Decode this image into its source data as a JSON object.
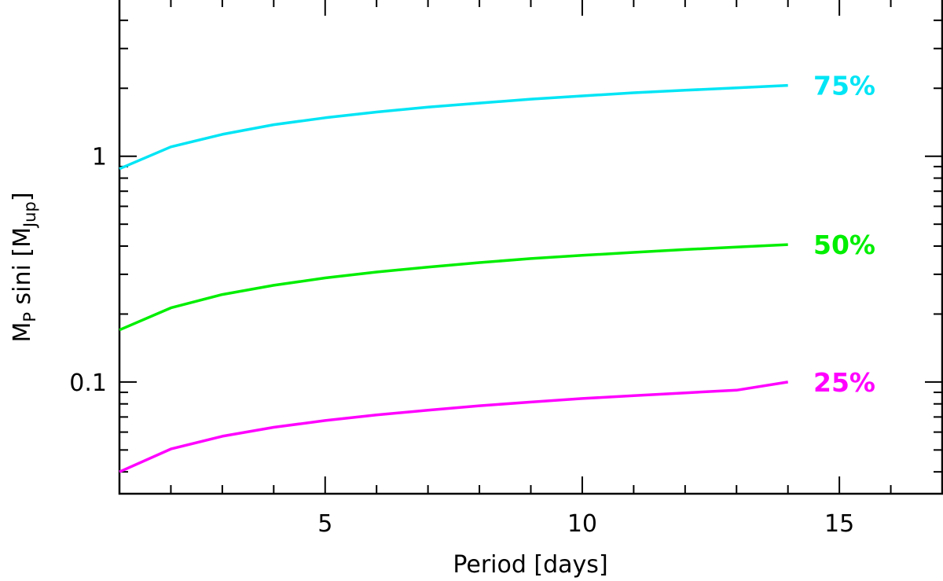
{
  "chart_data": {
    "type": "line",
    "xlabel": "Period [days]",
    "ylabel": {
      "base": "M",
      "base_sub": "P",
      "mid": " sini [M",
      "unit_sub": "Jup",
      "end": "]"
    },
    "xlim": [
      1,
      17
    ],
    "ylim": [
      0.032,
      5
    ],
    "yscale": "log",
    "x_ticks": [
      5,
      10,
      15
    ],
    "x_tick_labels": [
      "5",
      "10",
      "15"
    ],
    "y_ticks": [
      0.1,
      1
    ],
    "y_tick_labels": [
      "0.1",
      "1"
    ],
    "grid": false,
    "series": [
      {
        "name": "75%",
        "color": "#00e5f5",
        "x": [
          1,
          2,
          3,
          4,
          5,
          6,
          7,
          8,
          9,
          10,
          11,
          12,
          13,
          14
        ],
        "y": [
          0.88,
          1.1,
          1.25,
          1.38,
          1.48,
          1.57,
          1.65,
          1.72,
          1.79,
          1.85,
          1.91,
          1.96,
          2.01,
          2.06
        ]
      },
      {
        "name": "50%",
        "color": "#00ee00",
        "x": [
          1,
          2,
          3,
          4,
          5,
          6,
          7,
          8,
          9,
          10,
          11,
          12,
          13,
          14
        ],
        "y": [
          0.17,
          0.213,
          0.244,
          0.268,
          0.289,
          0.307,
          0.323,
          0.338,
          0.352,
          0.364,
          0.375,
          0.386,
          0.396,
          0.406
        ]
      },
      {
        "name": "25%",
        "color": "#ff00ff",
        "x": [
          1,
          2,
          3,
          4,
          5,
          6,
          7,
          8,
          9,
          10,
          11,
          12,
          13,
          14
        ],
        "y": [
          0.04,
          0.0505,
          0.0575,
          0.063,
          0.0675,
          0.0715,
          0.075,
          0.0785,
          0.0815,
          0.0845,
          0.087,
          0.0895,
          0.092,
          0.1
        ]
      }
    ]
  }
}
